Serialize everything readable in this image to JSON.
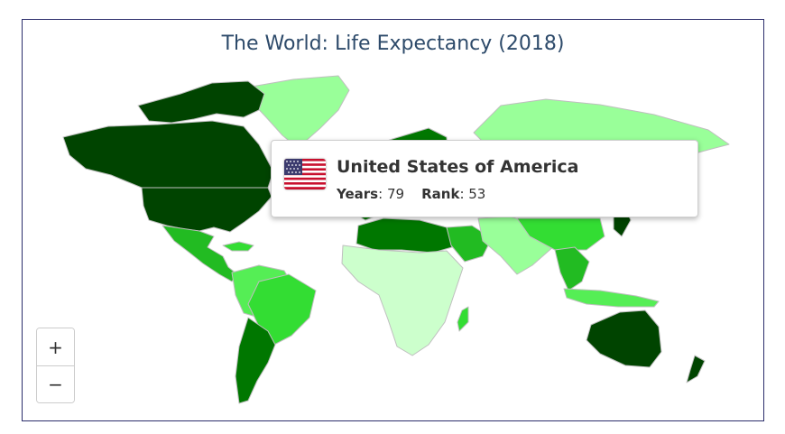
{
  "map": {
    "title": "The World: Life Expectancy (2018)",
    "colors": {
      "very_high": "#004400",
      "high": "#007700",
      "medium_high": "#22bb22",
      "medium": "#33dd33",
      "medium_low": "#55ee55",
      "low": "#99ff99",
      "very_low": "#ccffcc"
    },
    "regions": [
      {
        "name": "Canada",
        "level": "very_high"
      },
      {
        "name": "United States of America",
        "level": "very_high"
      },
      {
        "name": "Greenland",
        "level": "low"
      },
      {
        "name": "Mexico",
        "level": "medium_high"
      },
      {
        "name": "Brazil",
        "level": "medium"
      },
      {
        "name": "Argentina",
        "level": "high"
      },
      {
        "name": "Russia",
        "level": "low"
      },
      {
        "name": "China",
        "level": "medium"
      },
      {
        "name": "Africa",
        "level": "very_low"
      },
      {
        "name": "Australia",
        "level": "very_high"
      },
      {
        "name": "New Zealand",
        "level": "very_high"
      }
    ]
  },
  "tooltip": {
    "flag_icon": "us-flag-icon",
    "country": "United States of America",
    "years_label": "Years",
    "years_value": "79",
    "rank_label": "Rank",
    "rank_value": "53"
  },
  "zoom": {
    "in_label": "+",
    "out_label": "−"
  }
}
